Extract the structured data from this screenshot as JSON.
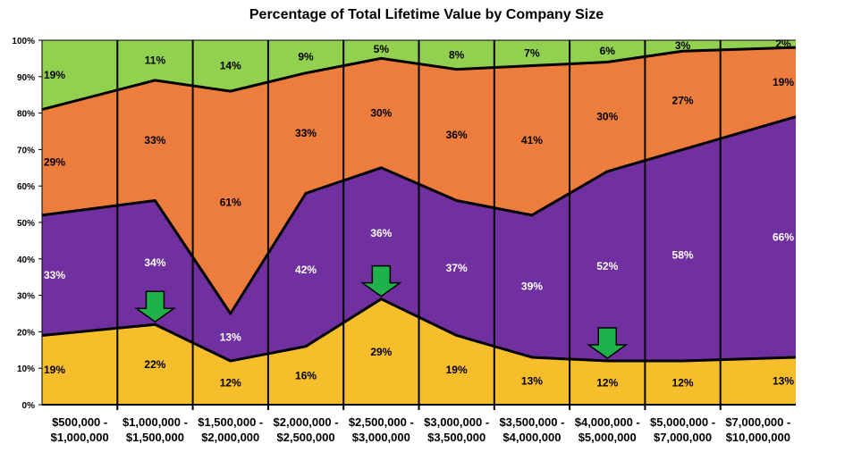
{
  "chart_data": {
    "type": "area",
    "stacked": true,
    "title": "Percentage of Total Lifetime Value by Company Size",
    "xlabel": "",
    "ylabel": "",
    "ylim": [
      0,
      100
    ],
    "yticks": [
      "0%",
      "10%",
      "20%",
      "30%",
      "40%",
      "50%",
      "60%",
      "70%",
      "80%",
      "90%",
      "100%"
    ],
    "categories": [
      [
        "$500,000 -",
        "$1,000,000"
      ],
      [
        "$1,000,000 -",
        "$1,500,000"
      ],
      [
        "$1,500,000 -",
        "$2,000,000"
      ],
      [
        "$2,000,000 -",
        "$2,500,000"
      ],
      [
        "$2,500,000 -",
        "$3,000,000"
      ],
      [
        "$3,000,000 -",
        "$3,500,000"
      ],
      [
        "$3,500,000 -",
        "$4,000,000"
      ],
      [
        "$4,000,000 -",
        "$5,000,000"
      ],
      [
        "$5,000,000 -",
        "$7,000,000"
      ],
      [
        "$7,000,000 -",
        "$10,000,000"
      ]
    ],
    "series": [
      {
        "color": "#F6BE2A",
        "label_color": "#000000",
        "values": [
          19,
          22,
          12,
          16,
          29,
          19,
          13,
          12,
          12,
          13
        ],
        "labels": [
          "19%",
          "22%",
          "12%",
          "16%",
          "29%",
          "19%",
          "13%",
          "12%",
          "12%",
          "13%"
        ]
      },
      {
        "color": "#7030A0",
        "label_color": "#FFFFFF",
        "values": [
          33,
          34,
          13,
          42,
          36,
          37,
          39,
          52,
          58,
          66
        ],
        "labels": [
          "33%",
          "34%",
          "13%",
          "42%",
          "36%",
          "37%",
          "39%",
          "52%",
          "58%",
          "66%"
        ]
      },
      {
        "color": "#ED7D3C",
        "label_color": "#000000",
        "values": [
          29,
          33,
          61,
          33,
          30,
          36,
          41,
          30,
          27,
          19
        ],
        "labels": [
          "29%",
          "33%",
          "61%",
          "33%",
          "30%",
          "36%",
          "41%",
          "30%",
          "27%",
          "19%"
        ]
      },
      {
        "color": "#92D050",
        "label_color": "#000000",
        "values": [
          19,
          11,
          14,
          9,
          5,
          8,
          7,
          6,
          3,
          2
        ],
        "labels": [
          "19%",
          "11%",
          "14%",
          "9%",
          "5%",
          "8%",
          "7%",
          "6%",
          "3%",
          "2%"
        ]
      }
    ],
    "annotations": [
      {
        "type": "down-arrow",
        "category_index": 1,
        "color": "#1FB24A"
      },
      {
        "type": "down-arrow",
        "category_index": 4,
        "color": "#1FB24A"
      },
      {
        "type": "down-arrow",
        "category_index": 7,
        "color": "#1FB24A"
      }
    ],
    "grid": false,
    "legend": "none"
  }
}
